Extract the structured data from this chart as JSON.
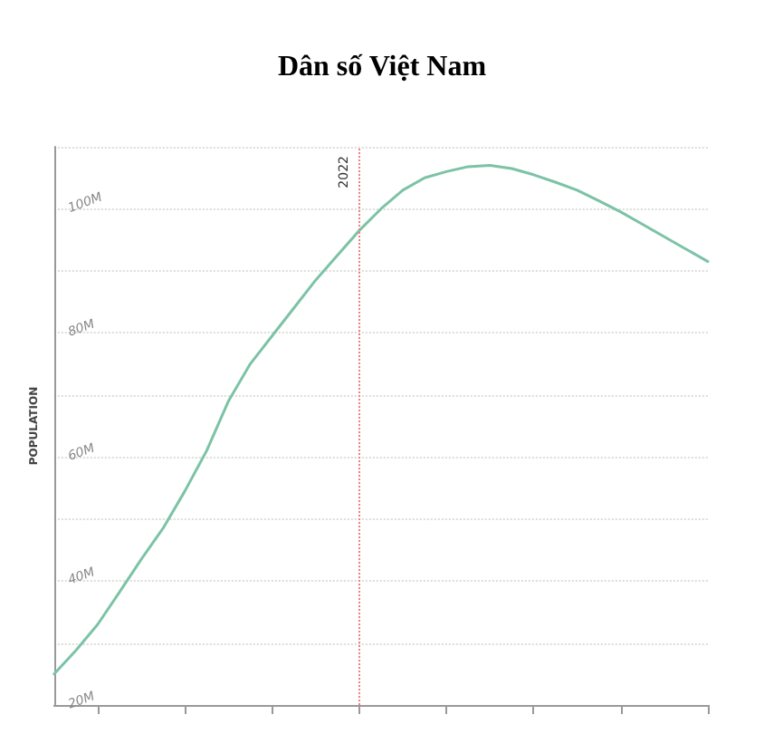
{
  "chart_data": {
    "type": "line",
    "title": "Dân số Việt Nam",
    "ylabel": "POPULATION",
    "categories": [
      null,
      null,
      null,
      null,
      null,
      null,
      null,
      null,
      null,
      null,
      null,
      null,
      null,
      null,
      null,
      null,
      null,
      null,
      null,
      null,
      null,
      null,
      null,
      null,
      null,
      null,
      null,
      null,
      null,
      null,
      null
    ],
    "series": [
      {
        "color": "#7cc3a6",
        "values": [
          25,
          28.8,
          33,
          38.2,
          43.5,
          48.5,
          54.5,
          61,
          69,
          75,
          79.5,
          84,
          88.5,
          92.5,
          96.5,
          100,
          103,
          105,
          106,
          106.8,
          107,
          106.5,
          105.5,
          104.3,
          103,
          101.3,
          99.5,
          97.5,
          95.5,
          93.5,
          91.5
        ]
      }
    ],
    "ylim": [
      20,
      110
    ],
    "yticks": [
      {
        "value": 20,
        "label": "20M"
      },
      {
        "value": 30,
        "label": null
      },
      {
        "value": 40,
        "label": "40M"
      },
      {
        "value": 50,
        "label": null
      },
      {
        "value": 60,
        "label": "60M"
      },
      {
        "value": 70,
        "label": null
      },
      {
        "value": 80,
        "label": "80M"
      },
      {
        "value": 90,
        "label": null
      },
      {
        "value": 100,
        "label": "100M"
      },
      {
        "value": 110,
        "label": null
      }
    ],
    "annotations": [
      "2022"
    ],
    "grid": "y",
    "marker": "none",
    "line_style": "solid"
  }
}
